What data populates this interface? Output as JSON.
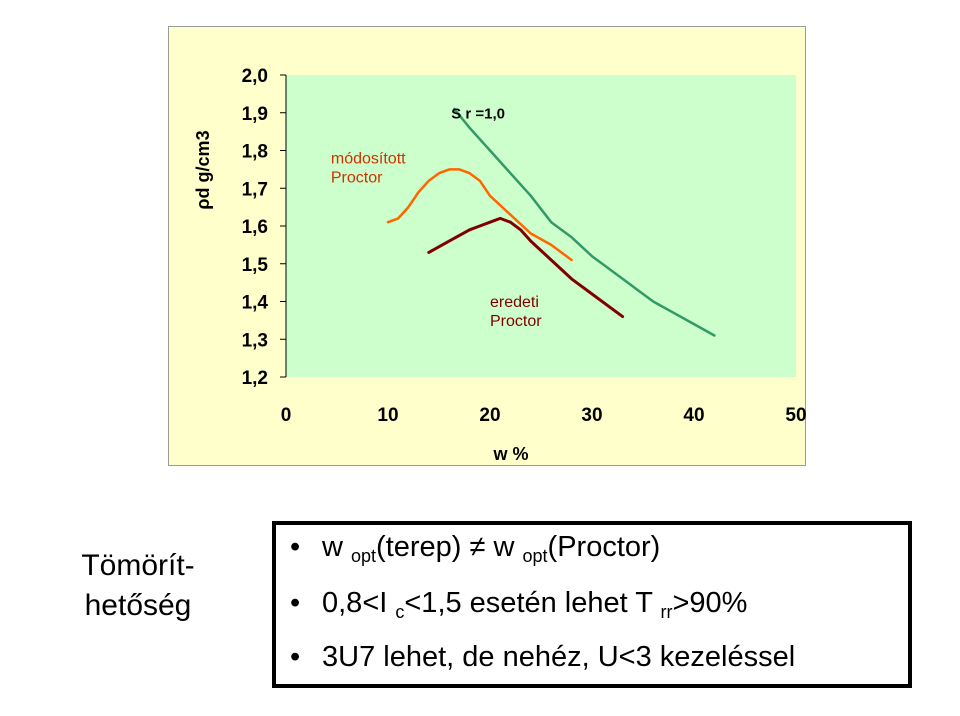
{
  "chart_data": {
    "type": "line",
    "ylabel": "ρd g/cm3",
    "xlabel": "w %",
    "xlim": [
      0,
      50
    ],
    "ylim": [
      1.2,
      2.0
    ],
    "x_ticks": [
      "0",
      "10",
      "20",
      "30",
      "40",
      "50"
    ],
    "y_ticks": [
      "2,0",
      "1,9",
      "1,8",
      "1,7",
      "1,6",
      "1,5",
      "1,4",
      "1,3",
      "1,2"
    ],
    "grid": false,
    "background": "#ccffcc",
    "annotations": {
      "saturation_label": "S r =1,0",
      "modified_label": [
        "módosított",
        "Proctor"
      ],
      "original_label": [
        "eredeti",
        "Proctor"
      ]
    },
    "series": [
      {
        "color": "#339966",
        "x": [
          16.5,
          18,
          20,
          22,
          24,
          26,
          28,
          30,
          32,
          34,
          36,
          38,
          40,
          42
        ],
        "y": [
          1.91,
          1.86,
          1.8,
          1.74,
          1.68,
          1.61,
          1.57,
          1.52,
          1.48,
          1.44,
          1.4,
          1.37,
          1.34,
          1.31
        ]
      },
      {
        "color": "#ff6600",
        "x": [
          10,
          11,
          12,
          13,
          14,
          15,
          16,
          17,
          18,
          19,
          20,
          22,
          24,
          26,
          28
        ],
        "y": [
          1.61,
          1.62,
          1.65,
          1.69,
          1.72,
          1.74,
          1.75,
          1.75,
          1.74,
          1.72,
          1.68,
          1.63,
          1.58,
          1.55,
          1.51
        ]
      },
      {
        "color": "#800000",
        "x": [
          14,
          16,
          18,
          19,
          20,
          21,
          22,
          23,
          24,
          26,
          28,
          30,
          32,
          33
        ],
        "y": [
          1.53,
          1.56,
          1.59,
          1.6,
          1.61,
          1.62,
          1.61,
          1.59,
          1.56,
          1.51,
          1.46,
          1.42,
          1.38,
          1.36
        ]
      }
    ]
  },
  "side_label": {
    "line1": "Tömörít-",
    "line2": "hetőség"
  },
  "bullets": [
    {
      "bullet": "•",
      "a": "w ",
      "a_sub": "opt",
      "b": "(terep) ",
      "neq": "≠",
      "c": " w ",
      "c_sub": "opt",
      "d": "(Proctor)"
    },
    {
      "bullet": "•",
      "a": "0,8<I ",
      "a_sub": "c",
      "b": "<1,5 esetén lehet T ",
      "b_sub": "rr",
      "c": ">90%"
    },
    {
      "bullet": "•",
      "text": "3U7 lehet, de nehéz, U<3 kezeléssel"
    }
  ]
}
